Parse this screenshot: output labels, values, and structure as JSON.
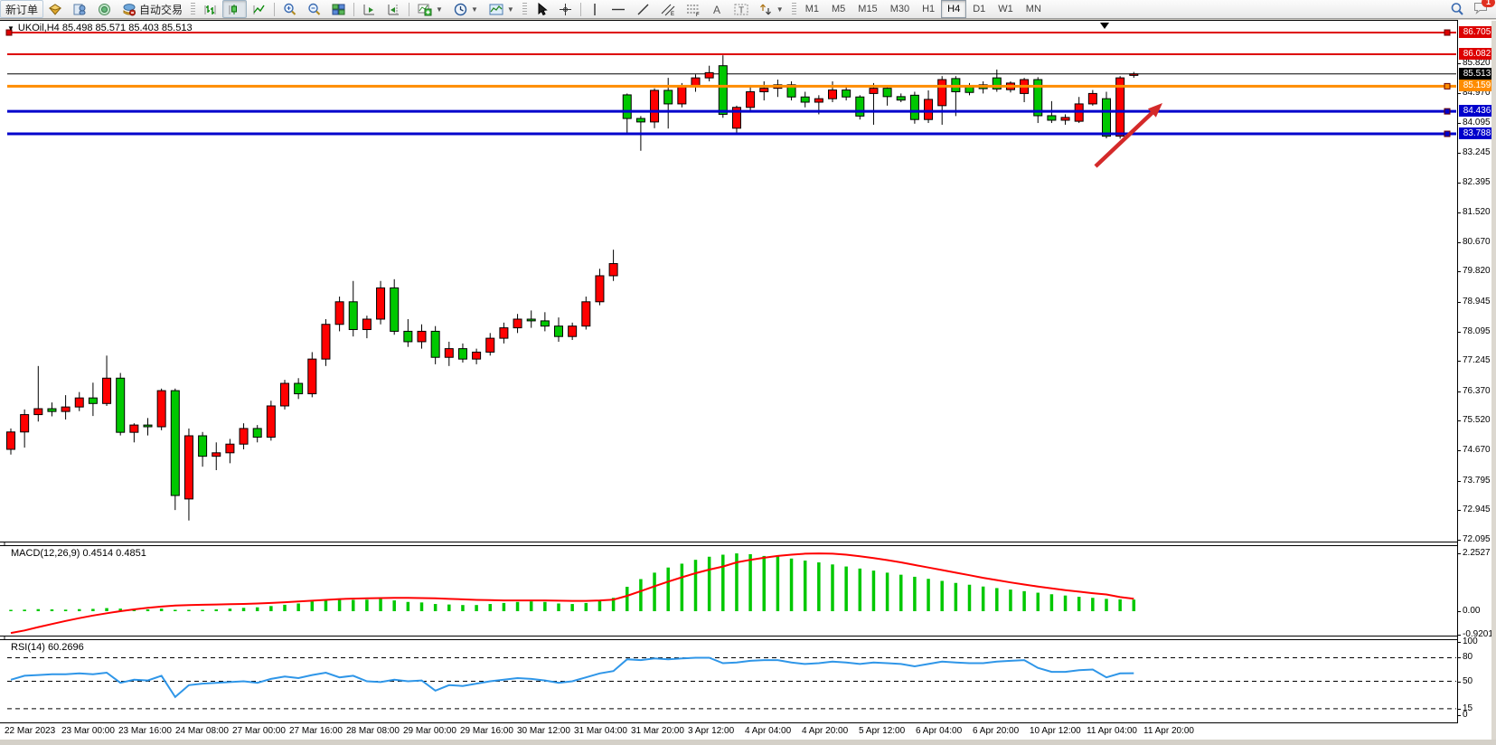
{
  "toolbar": {
    "new_order_label": "新订单",
    "autotrading_label": "自动交易",
    "timeframes": [
      "M1",
      "M5",
      "M15",
      "M30",
      "H1",
      "H4",
      "D1",
      "W1",
      "MN"
    ],
    "active_timeframe": "H4",
    "notification_count": "1"
  },
  "chart": {
    "title_line": "UKOil,H4 85.498 85.571 85.403 85.513",
    "symbol": "UKOil",
    "timeframe": "H4",
    "ohlc_display": {
      "open": "85.498",
      "high": "85.571",
      "low": "85.403",
      "close": "85.513"
    }
  },
  "price_axis": {
    "ticks": [
      "85.820",
      "84.970",
      "84.095",
      "83.245",
      "82.395",
      "81.520",
      "80.670",
      "79.820",
      "78.945",
      "78.095",
      "77.245",
      "76.370",
      "75.520",
      "74.670",
      "73.795",
      "72.945",
      "72.095"
    ],
    "badges": [
      {
        "text": "86.705",
        "color": "#dd0000"
      },
      {
        "text": "86.082",
        "color": "#dd0000"
      },
      {
        "text": "85.513",
        "color": "#000000"
      },
      {
        "text": "85.159",
        "color": "#ff8c00"
      },
      {
        "text": "84.436",
        "color": "#0000cc"
      },
      {
        "text": "83.788",
        "color": "#0000cc"
      }
    ]
  },
  "time_axis": {
    "labels": [
      "22 Mar 2023",
      "23 Mar 00:00",
      "23 Mar 16:00",
      "24 Mar 08:00",
      "27 Mar 00:00",
      "27 Mar 16:00",
      "28 Mar 08:00",
      "29 Mar 00:00",
      "29 Mar 16:00",
      "30 Mar 12:00",
      "31 Mar 04:00",
      "31 Mar 20:00",
      "3 Apr 12:00",
      "4 Apr 04:00",
      "4 Apr 20:00",
      "5 Apr 12:00",
      "6 Apr 04:00",
      "6 Apr 20:00",
      "10 Apr 12:00",
      "11 Apr 04:00",
      "11 Apr 20:00"
    ]
  },
  "indicators": {
    "macd": {
      "label": "MACD(12,26,9) 0.4514 0.4851",
      "ticks": [
        "2.2527",
        "0.00",
        "-0.9201"
      ]
    },
    "rsi": {
      "label": "RSI(14) 60.2696",
      "ticks": [
        "100",
        "80",
        "50",
        "15",
        "0"
      ]
    }
  },
  "colors": {
    "up": "#ff0000",
    "down": "#00c800",
    "candle_border": "#000000",
    "macd_hist": "#00c800",
    "macd_signal": "#ff0000",
    "rsi_line": "#2f96e8",
    "line_red": "#dd0000",
    "line_orange": "#ff8c00",
    "line_blue": "#0000cc",
    "bid_line": "#000000",
    "arrow": "#d42a2a"
  },
  "chart_data": [
    {
      "type": "candlestick",
      "title": "UKOil,H4",
      "convention": "red = bullish, green = bearish",
      "ylim": [
        72.095,
        87.07
      ],
      "current": {
        "open": 85.498,
        "high": 85.571,
        "low": 85.403,
        "close": 85.513
      },
      "hlines": [
        {
          "price": 86.705,
          "color": "#dd0000",
          "width": 2,
          "handles": [
            "left",
            "right"
          ]
        },
        {
          "price": 86.082,
          "color": "#dd0000",
          "width": 2,
          "handles": []
        },
        {
          "price": 85.159,
          "color": "#ff8c00",
          "width": 3,
          "handles": [
            "right"
          ]
        },
        {
          "price": 84.436,
          "color": "#0000cc",
          "width": 3,
          "handles": [
            "right"
          ]
        },
        {
          "price": 83.788,
          "color": "#0000cc",
          "width": 3,
          "handles": [
            "right"
          ]
        }
      ],
      "bid_price": 85.513,
      "marker": {
        "type": "triangle-down",
        "x": 1222,
        "y": 6
      },
      "annotation_arrow": {
        "from": [
          1212,
          162
        ],
        "to": [
          1286,
          92
        ]
      },
      "ohlc": [
        [
          74.7,
          75.3,
          74.55,
          75.2
        ],
        [
          75.2,
          75.85,
          74.75,
          75.7
        ],
        [
          75.7,
          77.1,
          75.5,
          75.87
        ],
        [
          75.87,
          76.05,
          75.65,
          75.79
        ],
        [
          75.79,
          76.26,
          75.56,
          75.92
        ],
        [
          75.92,
          76.35,
          75.8,
          76.18
        ],
        [
          76.18,
          76.62,
          75.66,
          76.02
        ],
        [
          76.02,
          77.4,
          75.95,
          76.75
        ],
        [
          76.75,
          76.9,
          75.1,
          75.19
        ],
        [
          75.19,
          75.45,
          74.9,
          75.4
        ],
        [
          75.4,
          75.6,
          75.1,
          75.35
        ],
        [
          75.35,
          76.45,
          75.25,
          76.39
        ],
        [
          76.39,
          76.45,
          72.95,
          73.37
        ],
        [
          73.27,
          75.3,
          72.65,
          75.09
        ],
        [
          75.09,
          75.2,
          74.2,
          74.5
        ],
        [
          74.5,
          74.9,
          74.1,
          74.6
        ],
        [
          74.6,
          75.0,
          74.3,
          74.85
        ],
        [
          74.85,
          75.45,
          74.7,
          75.3
        ],
        [
          75.3,
          75.4,
          74.9,
          75.05
        ],
        [
          75.05,
          76.1,
          74.95,
          75.95
        ],
        [
          75.95,
          76.7,
          75.85,
          76.6
        ],
        [
          76.6,
          76.75,
          76.15,
          76.3
        ],
        [
          76.3,
          77.5,
          76.2,
          77.3
        ],
        [
          77.3,
          78.45,
          77.1,
          78.3
        ],
        [
          78.3,
          79.1,
          78.1,
          78.95
        ],
        [
          78.95,
          79.55,
          77.95,
          78.15
        ],
        [
          78.15,
          78.55,
          77.9,
          78.45
        ],
        [
          78.45,
          79.55,
          78.3,
          79.35
        ],
        [
          79.35,
          79.6,
          78.0,
          78.1
        ],
        [
          78.1,
          78.45,
          77.65,
          77.8
        ],
        [
          77.8,
          78.3,
          77.6,
          78.1
        ],
        [
          78.1,
          78.25,
          77.15,
          77.35
        ],
        [
          77.35,
          77.8,
          77.1,
          77.6
        ],
        [
          77.6,
          77.75,
          77.2,
          77.3
        ],
        [
          77.3,
          77.6,
          77.15,
          77.5
        ],
        [
          77.5,
          78.05,
          77.4,
          77.9
        ],
        [
          77.9,
          78.35,
          77.75,
          78.2
        ],
        [
          78.2,
          78.6,
          78.05,
          78.45
        ],
        [
          78.45,
          78.7,
          78.2,
          78.4
        ],
        [
          78.4,
          78.65,
          78.1,
          78.25
        ],
        [
          78.25,
          78.5,
          77.8,
          77.95
        ],
        [
          77.95,
          78.35,
          77.85,
          78.25
        ],
        [
          78.25,
          79.1,
          78.15,
          78.95
        ],
        [
          78.95,
          79.9,
          78.85,
          79.7
        ],
        [
          79.7,
          80.45,
          79.55,
          80.05
        ],
        [
          84.91,
          84.95,
          83.79,
          84.23
        ],
        [
          84.23,
          84.3,
          83.3,
          84.13
        ],
        [
          84.13,
          85.1,
          83.95,
          85.04
        ],
        [
          85.04,
          85.4,
          83.94,
          84.65
        ],
        [
          84.65,
          85.25,
          84.55,
          85.15
        ],
        [
          85.15,
          85.5,
          85.0,
          85.4
        ],
        [
          85.4,
          85.75,
          85.3,
          85.55
        ],
        [
          85.75,
          86.05,
          84.25,
          84.35
        ],
        [
          83.95,
          84.6,
          83.8,
          84.55
        ],
        [
          84.55,
          85.15,
          84.45,
          85.0
        ],
        [
          85.0,
          85.3,
          84.75,
          85.1
        ],
        [
          85.1,
          85.35,
          84.85,
          85.2
        ],
        [
          85.2,
          85.3,
          84.75,
          84.85
        ],
        [
          84.85,
          85.0,
          84.55,
          84.7
        ],
        [
          84.7,
          84.9,
          84.35,
          84.8
        ],
        [
          84.8,
          85.3,
          84.7,
          85.05
        ],
        [
          85.05,
          85.15,
          84.75,
          84.85
        ],
        [
          84.85,
          84.9,
          84.2,
          84.3
        ],
        [
          84.95,
          85.25,
          84.05,
          85.1
        ],
        [
          85.1,
          85.15,
          84.6,
          84.86
        ],
        [
          84.86,
          84.95,
          84.7,
          84.76
        ],
        [
          84.9,
          85.0,
          84.08,
          84.2
        ],
        [
          84.2,
          85.04,
          84.1,
          84.78
        ],
        [
          84.6,
          85.45,
          84.05,
          85.35
        ],
        [
          85.38,
          85.45,
          84.3,
          85.0
        ],
        [
          85.15,
          85.25,
          84.9,
          84.98
        ],
        [
          85.2,
          85.3,
          84.95,
          85.09
        ],
        [
          85.4,
          85.64,
          85.0,
          85.08
        ],
        [
          85.06,
          85.3,
          84.98,
          85.25
        ],
        [
          84.95,
          85.4,
          84.7,
          85.35
        ],
        [
          85.35,
          85.42,
          84.1,
          84.31
        ],
        [
          84.31,
          84.73,
          84.1,
          84.18
        ],
        [
          84.18,
          84.35,
          84.05,
          84.26
        ],
        [
          84.15,
          84.85,
          84.1,
          84.65
        ],
        [
          84.65,
          85.05,
          84.6,
          84.95
        ],
        [
          84.8,
          85.0,
          83.66,
          83.72
        ],
        [
          83.72,
          85.45,
          83.65,
          85.4
        ],
        [
          85.498,
          85.571,
          85.403,
          85.513
        ]
      ]
    },
    {
      "type": "macd",
      "params": [
        12,
        26,
        9
      ],
      "value": 0.4514,
      "signal_value": 0.4851,
      "ylim": [
        -0.985,
        2.31
      ],
      "ticks": [
        2.2527,
        0.0,
        -0.9201
      ],
      "histogram": [
        0.05,
        0.06,
        0.08,
        0.07,
        0.06,
        0.08,
        0.09,
        0.12,
        0.1,
        0.08,
        0.07,
        0.1,
        0.05,
        0.04,
        0.05,
        0.07,
        0.1,
        0.13,
        0.15,
        0.2,
        0.25,
        0.3,
        0.38,
        0.44,
        0.46,
        0.44,
        0.45,
        0.48,
        0.42,
        0.36,
        0.34,
        0.28,
        0.26,
        0.24,
        0.24,
        0.28,
        0.32,
        0.36,
        0.38,
        0.36,
        0.3,
        0.28,
        0.32,
        0.42,
        0.52,
        0.95,
        1.25,
        1.5,
        1.7,
        1.85,
        2.0,
        2.12,
        2.2,
        2.25,
        2.22,
        2.15,
        2.13,
        2.05,
        1.97,
        1.9,
        1.82,
        1.74,
        1.66,
        1.58,
        1.5,
        1.42,
        1.34,
        1.26,
        1.18,
        1.1,
        1.03,
        0.96,
        0.9,
        0.84,
        0.78,
        0.72,
        0.66,
        0.61,
        0.56,
        0.52,
        0.48,
        0.46,
        0.4514
      ],
      "signal": [
        -0.85,
        -0.75,
        -0.62,
        -0.5,
        -0.38,
        -0.27,
        -0.17,
        -0.08,
        0.0,
        0.07,
        0.13,
        0.18,
        0.22,
        0.24,
        0.25,
        0.26,
        0.27,
        0.28,
        0.3,
        0.32,
        0.35,
        0.38,
        0.41,
        0.44,
        0.47,
        0.49,
        0.5,
        0.51,
        0.52,
        0.52,
        0.51,
        0.5,
        0.48,
        0.46,
        0.44,
        0.43,
        0.42,
        0.42,
        0.42,
        0.42,
        0.41,
        0.4,
        0.4,
        0.42,
        0.45,
        0.6,
        0.78,
        0.97,
        1.15,
        1.32,
        1.48,
        1.62,
        1.74,
        1.9,
        2.0,
        2.08,
        2.15,
        2.2,
        2.24,
        2.25,
        2.24,
        2.2,
        2.14,
        2.07,
        1.99,
        1.9,
        1.8,
        1.7,
        1.6,
        1.5,
        1.4,
        1.3,
        1.21,
        1.12,
        1.04,
        0.96,
        0.89,
        0.82,
        0.76,
        0.7,
        0.65,
        0.55,
        0.4851
      ]
    },
    {
      "type": "rsi",
      "period": 14,
      "value": 60.2696,
      "ylim": [
        0,
        100
      ],
      "levels": [
        80,
        50,
        15
      ],
      "values": [
        52,
        57,
        58,
        59,
        59,
        60,
        59,
        61,
        48,
        52,
        51,
        57,
        30,
        45,
        47,
        48,
        49,
        50,
        48,
        53,
        56,
        54,
        58,
        61,
        55,
        57,
        50,
        49,
        52,
        50,
        51,
        38,
        45,
        44,
        47,
        50,
        52,
        54,
        53,
        51,
        48,
        50,
        55,
        60,
        63,
        78,
        77,
        79,
        78,
        79,
        80,
        80,
        73,
        74,
        76,
        77,
        77,
        74,
        72,
        73,
        75,
        74,
        72,
        74,
        73,
        72,
        69,
        72,
        75,
        74,
        73,
        73,
        75,
        76,
        77,
        67,
        62,
        62,
        64,
        65,
        55,
        60,
        60.2696
      ]
    }
  ]
}
